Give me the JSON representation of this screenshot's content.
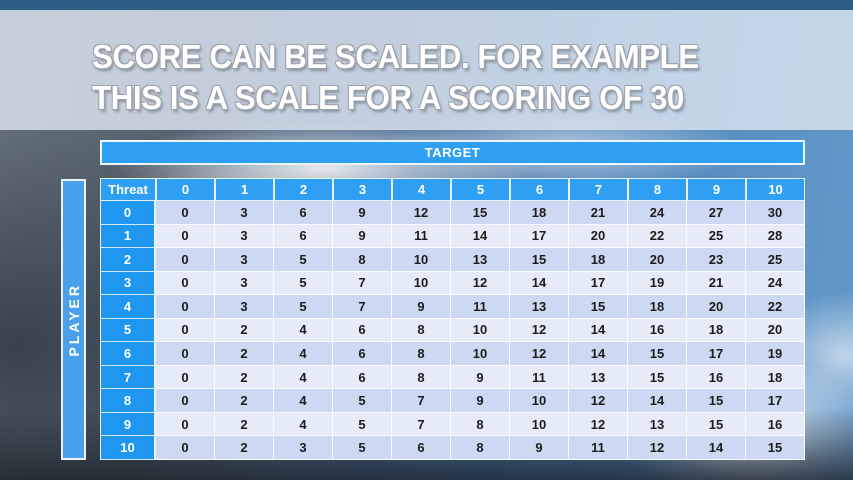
{
  "slide": {
    "title_line1": "SCORE CAN BE SCALED. FOR EXAMPLE",
    "title_line2": "THIS IS A SCALE FOR A SCORING OF 30"
  },
  "table": {
    "target_label": "TARGET",
    "threat_label": "Threat",
    "player_label": "PLAYER",
    "col_headers": [
      "0",
      "1",
      "2",
      "3",
      "4",
      "5",
      "6",
      "7",
      "8",
      "9",
      "10"
    ],
    "row_headers": [
      "0",
      "1",
      "2",
      "3",
      "4",
      "5",
      "6",
      "7",
      "8",
      "9",
      "10"
    ],
    "rows": [
      [
        0,
        3,
        6,
        9,
        12,
        15,
        18,
        21,
        24,
        27,
        30
      ],
      [
        0,
        3,
        6,
        9,
        11,
        14,
        17,
        20,
        22,
        25,
        28
      ],
      [
        0,
        3,
        5,
        8,
        10,
        13,
        15,
        18,
        20,
        23,
        25
      ],
      [
        0,
        3,
        5,
        7,
        10,
        12,
        14,
        17,
        19,
        21,
        24
      ],
      [
        0,
        3,
        5,
        7,
        9,
        11,
        13,
        15,
        18,
        20,
        22
      ],
      [
        0,
        2,
        4,
        6,
        8,
        10,
        12,
        14,
        16,
        18,
        20
      ],
      [
        0,
        2,
        4,
        6,
        8,
        10,
        12,
        14,
        15,
        17,
        19
      ],
      [
        0,
        2,
        4,
        6,
        8,
        9,
        11,
        13,
        15,
        16,
        18
      ],
      [
        0,
        2,
        4,
        5,
        7,
        9,
        10,
        12,
        14,
        15,
        17
      ],
      [
        0,
        2,
        4,
        5,
        7,
        8,
        10,
        12,
        13,
        15,
        16
      ],
      [
        0,
        2,
        3,
        5,
        6,
        8,
        9,
        11,
        12,
        14,
        15
      ]
    ]
  },
  "colors": {
    "header_blue": "#2e9ff2",
    "row_label_blue": "#1f97f0",
    "player_bar_blue": "#4aa0ea",
    "row_even": "#cdd9f2",
    "row_odd": "#e6ebf8",
    "top_bar": "#2d5e86",
    "title_band": "#d6e0eb",
    "title_text": "#ffffff"
  }
}
